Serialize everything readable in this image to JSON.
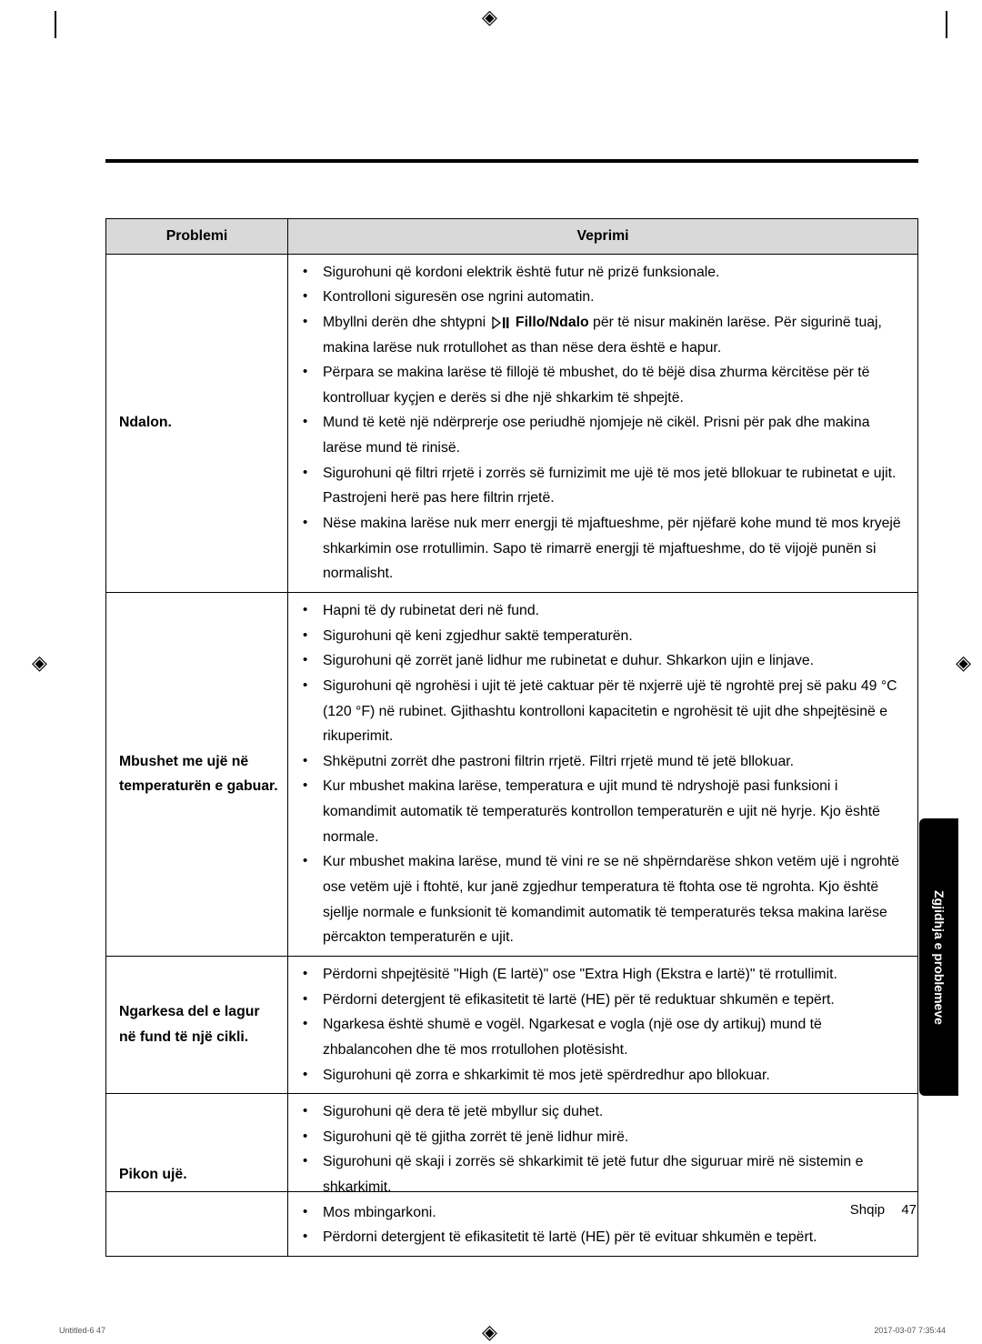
{
  "header_col1": "Problemi",
  "header_col2": "Veprimi",
  "rows": [
    {
      "problem": "Ndalon.",
      "actions": [
        "Sigurohuni që kordoni elektrik është futur në prizë funksionale.",
        "Kontrolloni siguresën ose ngrini automatin.",
        {
          "prefix": "Mbyllni derën dhe shtypni ",
          "icon": true,
          "bold": "Fillo/Ndalo",
          "rest": " për të nisur makinën larëse. Për sigurinë tuaj, makina larëse nuk rrotullohet as than nëse dera është e hapur."
        },
        "Përpara se makina larëse të fillojë të mbushet, do të bëjë disa zhurma kërcitëse për të kontrolluar kyçjen e derës si dhe një shkarkim të shpejtë.",
        "Mund të ketë një ndërprerje ose periudhë njomjeje në cikël. Prisni për pak dhe makina larëse mund të rinisë.",
        "Sigurohuni që filtri rrjetë i zorrës së furnizimit me ujë të mos jetë bllokuar te rubinetat e ujit. Pastrojeni herë pas here filtrin rrjetë.",
        "Nëse makina larëse nuk merr energji të mjaftueshme, për njëfarë kohe mund të mos kryejë shkarkimin ose rrotullimin. Sapo të rimarrë energji të mjaftueshme, do të vijojë punën si normalisht."
      ]
    },
    {
      "problem": "Mbushet me ujë në temperaturën e gabuar.",
      "actions": [
        "Hapni të dy rubinetat deri në fund.",
        "Sigurohuni që keni zgjedhur saktë temperaturën.",
        "Sigurohuni që zorrët janë lidhur me rubinetat e duhur. Shkarkon ujin e linjave.",
        "Sigurohuni që ngrohësi i ujit të jetë caktuar për të nxjerrë ujë të ngrohtë prej së paku 49 °C (120 °F) në rubinet. Gjithashtu kontrolloni kapacitetin e ngrohësit të ujit dhe shpejtësinë e rikuperimit.",
        "Shkëputni zorrët dhe pastroni filtrin rrjetë. Filtri rrjetë mund të jetë bllokuar.",
        "Kur mbushet makina larëse, temperatura e ujit mund të ndryshojë pasi funksioni i komandimit automatik të temperaturës kontrollon temperaturën e ujit në hyrje. Kjo është normale.",
        "Kur mbushet makina larëse, mund të vini re se në shpërndarëse shkon vetëm ujë i ngrohtë ose vetëm ujë i ftohtë, kur janë zgjedhur temperatura të ftohta ose të ngrohta. Kjo është sjellje normale e funksionit të komandimit automatik të temperaturës teksa makina larëse përcakton temperaturën e ujit."
      ]
    },
    {
      "problem": "Ngarkesa del e lagur në fund të një cikli.",
      "actions": [
        "Përdorni shpejtësitë \"High (E lartë)\" ose \"Extra High (Ekstra e lartë)\" të rrotullimit.",
        "Përdorni detergjent të efikasitetit të lartë (HE) për të reduktuar shkumën e tepërt.",
        "Ngarkesa është shumë e vogël. Ngarkesat e vogla (një ose dy artikuj) mund të zhbalancohen dhe të mos rrotullohen plotësisht.",
        "Sigurohuni që zorra e shkarkimit të mos jetë spërdredhur apo bllokuar."
      ]
    },
    {
      "problem": "Pikon ujë.",
      "actions": [
        "Sigurohuni që dera të jetë mbyllur siç duhet.",
        "Sigurohuni që të gjitha zorrët të jenë lidhur mirë.",
        "Sigurohuni që skaji i zorrës së shkarkimit të jetë futur dhe siguruar mirë në sistemin e shkarkimit.",
        "Mos mbingarkoni.",
        "Përdorni detergjent të efikasitetit të lartë (HE) për të evituar shkumën e tepërt."
      ]
    }
  ],
  "sidebar_label": "Zgjidhja e problemeve",
  "footer_lang": "Shqip",
  "footer_page": "47",
  "doc_left": "Untitled-6   47",
  "doc_right": "2017-03-07   7:35:44"
}
